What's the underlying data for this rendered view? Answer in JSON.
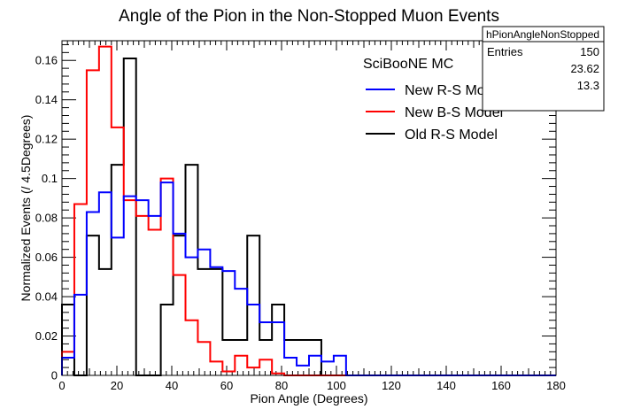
{
  "chart_data": {
    "type": "step-histogram",
    "title": "Angle of the Pion in the Non-Stopped Muon Events",
    "xlabel": "Pion Angle (Degrees)",
    "ylabel": "Normalized Events (/ 4.5Degrees)",
    "xlim": [
      0,
      180
    ],
    "ylim": [
      0,
      0.17
    ],
    "bin_width": 4.5,
    "x_ticks": [
      0,
      20,
      40,
      60,
      80,
      100,
      120,
      140,
      160,
      180
    ],
    "x_tick_labels": [
      "0",
      "20",
      "40",
      "60",
      "80",
      "100",
      "120",
      "140",
      "160",
      "180"
    ],
    "y_ticks": [
      0,
      0.02,
      0.04,
      0.06,
      0.08,
      0.1,
      0.12,
      0.14,
      0.16
    ],
    "y_tick_labels": [
      "0",
      "0.02",
      "0.04",
      "0.06",
      "0.08",
      "0.1",
      "0.12",
      "0.14",
      "0.16"
    ],
    "grid": false,
    "legend": {
      "placement": "top-right",
      "header": "SciBooNE MC"
    },
    "series": [
      {
        "name": "New R-S Model",
        "color": "#0000ff",
        "values": [
          0.009,
          0.041,
          0.083,
          0.093,
          0.07,
          0.091,
          0.089,
          0.081,
          0.098,
          0.072,
          0.06,
          0.064,
          0.055,
          0.053,
          0.044,
          0.036,
          0.027,
          0.027,
          0.009,
          0.005,
          0.01,
          0.007,
          0.01,
          0,
          0,
          0,
          0,
          0,
          0,
          0,
          0,
          0,
          0,
          0,
          0,
          0,
          0,
          0,
          0,
          0
        ]
      },
      {
        "name": "New B-S Model",
        "color": "#ff0000",
        "values": [
          0.012,
          0.087,
          0.155,
          0.167,
          0.126,
          0.089,
          0.081,
          0.074,
          0.1,
          0.051,
          0.028,
          0.017,
          0.007,
          0.002,
          0.01,
          0.004,
          0.008,
          0.001,
          0,
          0,
          0,
          0,
          0,
          0,
          0,
          0,
          0,
          0,
          0,
          0,
          0,
          0,
          0,
          0,
          0,
          0,
          0,
          0,
          0,
          0
        ]
      },
      {
        "name": "Old R-S Model",
        "color": "#000000",
        "values": [
          0.036,
          0,
          0.071,
          0.054,
          0.107,
          0.161,
          0,
          0,
          0.036,
          0.071,
          0.107,
          0.054,
          0.054,
          0.018,
          0.018,
          0.071,
          0.018,
          0.036,
          0.018,
          0.018,
          0.018,
          0,
          0,
          0,
          0,
          0,
          0,
          0,
          0,
          0,
          0,
          0,
          0,
          0,
          0,
          0,
          0,
          0,
          0,
          0
        ]
      }
    ],
    "stats_box": {
      "name": "hPionAngleNonStopped",
      "entries_label": "Entries",
      "entries": "150",
      "mean": "23.62",
      "rms": "13.3"
    }
  }
}
